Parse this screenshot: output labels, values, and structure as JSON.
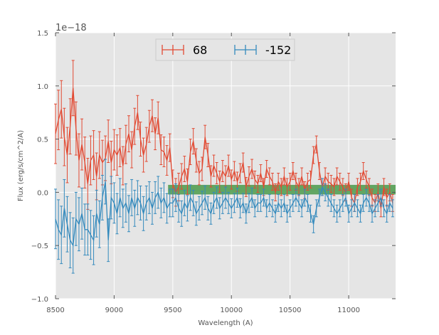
{
  "chart_data": {
    "type": "line",
    "title": "",
    "xlabel": "Wavelength (A)",
    "ylabel": "Flux (erg/s/cm^2/A)",
    "offset_label": "1e−18",
    "xlim": [
      8500,
      11400
    ],
    "ylim": [
      -1.0,
      1.5
    ],
    "scale": 1e-18,
    "xticks": [
      8500,
      9000,
      9500,
      10000,
      10500,
      11000
    ],
    "xtick_labels": [
      "8500",
      "9000",
      "9500",
      "10000",
      "10500",
      "11000"
    ],
    "yticks": [
      -1.0,
      -0.5,
      0.0,
      0.5,
      1.0,
      1.5
    ],
    "ytick_labels": [
      "−1.0",
      "−0.5",
      "0.0",
      "0.5",
      "1.0",
      "1.5"
    ],
    "grid": true,
    "legend_position": "top-center",
    "band": {
      "x0": 9460,
      "x1": 11400,
      "y0": -0.02,
      "y1": 0.07,
      "color": "#4a9a4a"
    },
    "series": [
      {
        "name": "68",
        "color": "#e24a33",
        "x": [
          8500,
          8525,
          8550,
          8575,
          8600,
          8625,
          8650,
          8675,
          8700,
          8725,
          8750,
          8775,
          8800,
          8825,
          8850,
          8875,
          8900,
          8925,
          8950,
          8975,
          9000,
          9025,
          9050,
          9075,
          9100,
          9125,
          9150,
          9175,
          9200,
          9225,
          9250,
          9275,
          9300,
          9325,
          9350,
          9375,
          9400,
          9425,
          9450,
          9475,
          9500,
          9525,
          9550,
          9575,
          9600,
          9625,
          9650,
          9675,
          9700,
          9725,
          9750,
          9775,
          9800,
          9825,
          9850,
          9875,
          9900,
          9925,
          9950,
          9975,
          10000,
          10025,
          10050,
          10075,
          10100,
          10125,
          10150,
          10175,
          10200,
          10225,
          10250,
          10275,
          10300,
          10325,
          10350,
          10375,
          10400,
          10425,
          10450,
          10475,
          10500,
          10525,
          10550,
          10575,
          10600,
          10625,
          10650,
          10675,
          10700,
          10725,
          10750,
          10775,
          10800,
          10825,
          10850,
          10875,
          10900,
          10925,
          10950,
          10975,
          11000,
          11025,
          11050,
          11075,
          11100,
          11125,
          11150,
          11175,
          11200,
          11225,
          11250,
          11275,
          11300,
          11325,
          11350,
          11375
        ],
        "y": [
          0.55,
          0.68,
          0.78,
          0.52,
          0.35,
          0.62,
          0.98,
          0.6,
          0.3,
          0.45,
          0.28,
          0.08,
          0.3,
          0.35,
          0.15,
          0.35,
          0.28,
          0.32,
          0.48,
          0.28,
          0.4,
          0.35,
          0.42,
          0.25,
          0.45,
          0.55,
          0.4,
          0.62,
          0.75,
          0.5,
          0.35,
          0.45,
          0.62,
          0.72,
          0.55,
          0.7,
          0.4,
          0.38,
          0.3,
          0.42,
          0.08,
          0.0,
          0.05,
          0.15,
          0.22,
          0.1,
          0.38,
          0.48,
          0.3,
          0.18,
          0.22,
          0.52,
          0.35,
          0.15,
          0.25,
          0.18,
          0.1,
          0.2,
          0.15,
          0.25,
          0.12,
          0.2,
          0.1,
          0.18,
          0.28,
          0.05,
          0.15,
          0.22,
          0.12,
          0.08,
          0.18,
          0.05,
          0.22,
          0.15,
          0.1,
          0.0,
          0.1,
          0.05,
          0.15,
          0.05,
          0.1,
          0.2,
          0.1,
          0.05,
          0.15,
          0.02,
          0.1,
          0.12,
          0.35,
          0.45,
          0.2,
          0.05,
          0.15,
          0.1,
          0.08,
          0.05,
          0.15,
          0.1,
          0.05,
          0.0,
          0.1,
          -0.05,
          -0.1,
          0.05,
          0.1,
          0.2,
          0.12,
          0.05,
          -0.05,
          -0.1,
          0.0,
          -0.15,
          0.05,
          -0.05,
          0.0,
          -0.1
        ],
        "err": [
          0.28,
          0.28,
          0.27,
          0.27,
          0.26,
          0.26,
          0.26,
          0.25,
          0.25,
          0.24,
          0.24,
          0.24,
          0.23,
          0.23,
          0.22,
          0.22,
          0.21,
          0.21,
          0.2,
          0.2,
          0.19,
          0.19,
          0.18,
          0.18,
          0.18,
          0.17,
          0.17,
          0.17,
          0.16,
          0.16,
          0.16,
          0.16,
          0.15,
          0.15,
          0.15,
          0.15,
          0.14,
          0.14,
          0.14,
          0.13,
          0.13,
          0.13,
          0.13,
          0.12,
          0.12,
          0.12,
          0.12,
          0.12,
          0.11,
          0.11,
          0.11,
          0.11,
          0.11,
          0.1,
          0.1,
          0.1,
          0.1,
          0.1,
          0.1,
          0.1,
          0.09,
          0.09,
          0.09,
          0.09,
          0.09,
          0.09,
          0.09,
          0.09,
          0.08,
          0.08,
          0.08,
          0.08,
          0.08,
          0.08,
          0.08,
          0.08,
          0.08,
          0.08,
          0.08,
          0.08,
          0.08,
          0.08,
          0.08,
          0.08,
          0.08,
          0.08,
          0.08,
          0.08,
          0.08,
          0.08,
          0.08,
          0.08,
          0.08,
          0.08,
          0.08,
          0.08,
          0.08,
          0.08,
          0.08,
          0.08,
          0.08,
          0.08,
          0.08,
          0.08,
          0.08,
          0.08,
          0.08,
          0.08,
          0.08,
          0.08,
          0.08,
          0.08,
          0.08,
          0.08,
          0.08,
          0.08
        ]
      },
      {
        "name": "-152",
        "color": "#348abd",
        "x": [
          8500,
          8525,
          8550,
          8575,
          8600,
          8625,
          8650,
          8675,
          8700,
          8725,
          8750,
          8775,
          8800,
          8825,
          8850,
          8875,
          8900,
          8925,
          8950,
          8975,
          9000,
          9025,
          9050,
          9075,
          9100,
          9125,
          9150,
          9175,
          9200,
          9225,
          9250,
          9275,
          9300,
          9325,
          9350,
          9375,
          9400,
          9425,
          9450,
          9475,
          9500,
          9525,
          9550,
          9575,
          9600,
          9625,
          9650,
          9675,
          9700,
          9725,
          9750,
          9775,
          9800,
          9825,
          9850,
          9875,
          9900,
          9925,
          9950,
          9975,
          10000,
          10025,
          10050,
          10075,
          10100,
          10125,
          10150,
          10175,
          10200,
          10225,
          10250,
          10275,
          10300,
          10325,
          10350,
          10375,
          10400,
          10425,
          10450,
          10475,
          10500,
          10525,
          10550,
          10575,
          10600,
          10625,
          10650,
          10675,
          10700,
          10725,
          10750,
          10775,
          10800,
          10825,
          10850,
          10875,
          10900,
          10925,
          10950,
          10975,
          11000,
          11025,
          11050,
          11075,
          11100,
          11125,
          11150,
          11175,
          11200,
          11225,
          11250,
          11275,
          11300,
          11325,
          11350,
          11375
        ],
        "y": [
          -0.25,
          -0.35,
          -0.4,
          -0.15,
          -0.3,
          -0.45,
          -0.5,
          -0.25,
          -0.3,
          -0.2,
          -0.35,
          -0.35,
          -0.4,
          -0.45,
          -0.2,
          -0.3,
          -0.05,
          0.1,
          -0.45,
          -0.05,
          -0.1,
          -0.2,
          -0.05,
          -0.15,
          -0.1,
          -0.2,
          -0.05,
          -0.15,
          -0.05,
          -0.1,
          -0.2,
          -0.1,
          -0.05,
          -0.15,
          -0.05,
          0.0,
          -0.1,
          -0.05,
          -0.15,
          -0.1,
          -0.1,
          -0.05,
          -0.15,
          -0.2,
          -0.1,
          -0.15,
          -0.05,
          -0.1,
          -0.2,
          -0.15,
          -0.1,
          -0.05,
          -0.15,
          -0.2,
          -0.1,
          -0.05,
          -0.15,
          -0.1,
          -0.05,
          -0.1,
          -0.15,
          -0.1,
          -0.05,
          -0.15,
          -0.1,
          -0.2,
          -0.1,
          -0.05,
          -0.15,
          -0.1,
          -0.1,
          -0.05,
          -0.15,
          -0.1,
          -0.15,
          -0.2,
          -0.1,
          -0.15,
          -0.1,
          -0.2,
          -0.15,
          -0.1,
          -0.05,
          -0.1,
          -0.15,
          -0.05,
          -0.1,
          -0.2,
          -0.3,
          -0.15,
          -0.05,
          0.05,
          0.0,
          -0.05,
          -0.1,
          -0.15,
          -0.2,
          -0.15,
          -0.1,
          -0.05,
          -0.2,
          -0.15,
          -0.1,
          -0.15,
          -0.2,
          -0.1,
          -0.05,
          -0.1,
          -0.2,
          -0.15,
          -0.1,
          -0.05,
          -0.15,
          -0.2,
          -0.1,
          -0.15
        ],
        "err": [
          0.28,
          0.28,
          0.27,
          0.27,
          0.26,
          0.26,
          0.26,
          0.25,
          0.25,
          0.24,
          0.24,
          0.24,
          0.23,
          0.23,
          0.22,
          0.22,
          0.21,
          0.21,
          0.2,
          0.2,
          0.19,
          0.19,
          0.18,
          0.18,
          0.18,
          0.17,
          0.17,
          0.17,
          0.16,
          0.16,
          0.16,
          0.16,
          0.15,
          0.15,
          0.15,
          0.15,
          0.14,
          0.14,
          0.14,
          0.13,
          0.13,
          0.13,
          0.13,
          0.12,
          0.12,
          0.12,
          0.12,
          0.12,
          0.11,
          0.11,
          0.11,
          0.11,
          0.11,
          0.1,
          0.1,
          0.1,
          0.1,
          0.1,
          0.1,
          0.1,
          0.09,
          0.09,
          0.09,
          0.09,
          0.09,
          0.09,
          0.09,
          0.09,
          0.08,
          0.08,
          0.08,
          0.08,
          0.08,
          0.08,
          0.08,
          0.08,
          0.08,
          0.08,
          0.08,
          0.08,
          0.08,
          0.08,
          0.08,
          0.08,
          0.08,
          0.08,
          0.08,
          0.08,
          0.08,
          0.08,
          0.08,
          0.08,
          0.08,
          0.08,
          0.08,
          0.08,
          0.08,
          0.08,
          0.08,
          0.08,
          0.08,
          0.08,
          0.08,
          0.08,
          0.08,
          0.08,
          0.08,
          0.08,
          0.08,
          0.08,
          0.08,
          0.08,
          0.08,
          0.08,
          0.08,
          0.08
        ]
      }
    ]
  }
}
